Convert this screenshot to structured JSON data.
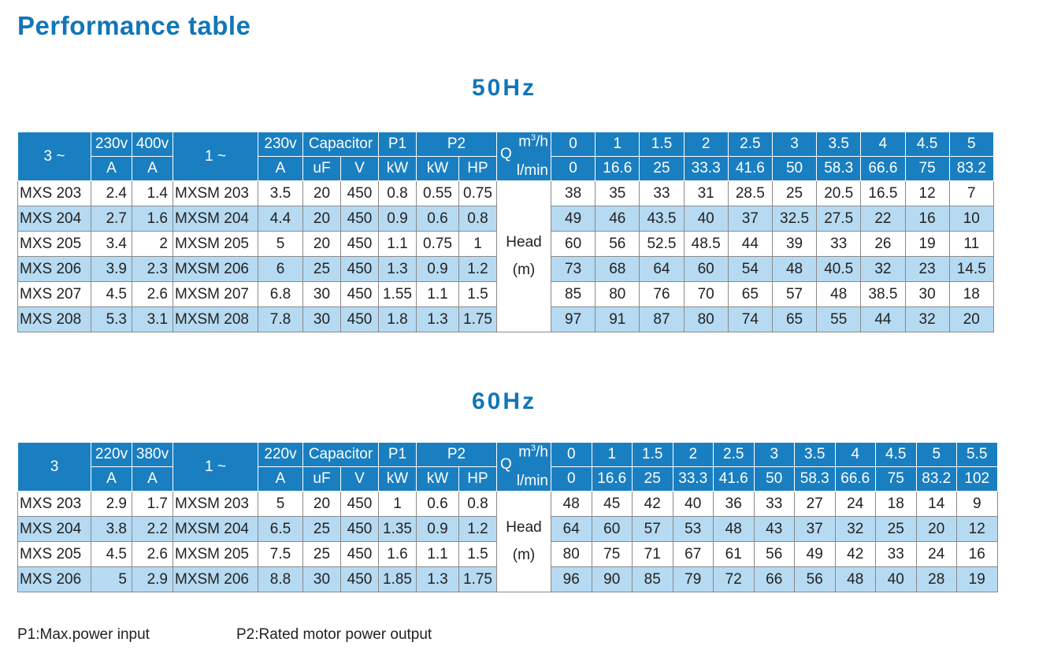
{
  "title": "Performance table",
  "footnotes": {
    "p1": "P1:Max.power input",
    "p2": "P2:Rated motor power output"
  },
  "table50": {
    "freq": "50Hz",
    "phase3": "3 ~",
    "phase1": "1 ~",
    "v1": "230v",
    "v2": "400v",
    "v3": "230v",
    "cap": "Capacitor",
    "p1": "P1",
    "p2": "P2",
    "unitA": "A",
    "unitUF": "uF",
    "unitV": "V",
    "unitKW": "kW",
    "unitHP": "HP",
    "q": "Q",
    "m3h": "m",
    "m3h_sup": "3",
    "m3h_tail": "/h",
    "lmin": "l/min",
    "head1": "Head",
    "head2": "(m)",
    "flow_m3h": [
      "0",
      "1",
      "1.5",
      "2",
      "2.5",
      "3",
      "3.5",
      "4",
      "4.5",
      "5"
    ],
    "flow_lmin": [
      "0",
      "16.6",
      "25",
      "33.3",
      "41.6",
      "50",
      "58.3",
      "66.6",
      "75",
      "83.2"
    ],
    "rows": [
      {
        "m3": "MXS 203",
        "a230": "2.4",
        "a400": "1.4",
        "m1": "MXSM 203",
        "a1": "3.5",
        "uf": "20",
        "v": "450",
        "p1": "0.8",
        "kw": "0.55",
        "hp": "0.75",
        "head": [
          "38",
          "35",
          "33",
          "31",
          "28.5",
          "25",
          "20.5",
          "16.5",
          "12",
          "7"
        ]
      },
      {
        "m3": "MXS 204",
        "a230": "2.7",
        "a400": "1.6",
        "m1": "MXSM 204",
        "a1": "4.4",
        "uf": "20",
        "v": "450",
        "p1": "0.9",
        "kw": "0.6",
        "hp": "0.8",
        "head": [
          "49",
          "46",
          "43.5",
          "40",
          "37",
          "32.5",
          "27.5",
          "22",
          "16",
          "10"
        ]
      },
      {
        "m3": "MXS 205",
        "a230": "3.4",
        "a400": "2",
        "m1": "MXSM 205",
        "a1": "5",
        "uf": "20",
        "v": "450",
        "p1": "1.1",
        "kw": "0.75",
        "hp": "1",
        "head": [
          "60",
          "56",
          "52.5",
          "48.5",
          "44",
          "39",
          "33",
          "26",
          "19",
          "11"
        ]
      },
      {
        "m3": "MXS 206",
        "a230": "3.9",
        "a400": "2.3",
        "m1": "MXSM 206",
        "a1": "6",
        "uf": "25",
        "v": "450",
        "p1": "1.3",
        "kw": "0.9",
        "hp": "1.2",
        "head": [
          "73",
          "68",
          "64",
          "60",
          "54",
          "48",
          "40.5",
          "32",
          "23",
          "14.5"
        ]
      },
      {
        "m3": "MXS 207",
        "a230": "4.5",
        "a400": "2.6",
        "m1": "MXSM 207",
        "a1": "6.8",
        "uf": "30",
        "v": "450",
        "p1": "1.55",
        "kw": "1.1",
        "hp": "1.5",
        "head": [
          "85",
          "80",
          "76",
          "70",
          "65",
          "57",
          "48",
          "38.5",
          "30",
          "18"
        ]
      },
      {
        "m3": "MXS 208",
        "a230": "5.3",
        "a400": "3.1",
        "m1": "MXSM 208",
        "a1": "7.8",
        "uf": "30",
        "v": "450",
        "p1": "1.8",
        "kw": "1.3",
        "hp": "1.75",
        "head": [
          "97",
          "91",
          "87",
          "80",
          "74",
          "65",
          "55",
          "44",
          "32",
          "20"
        ]
      }
    ]
  },
  "table60": {
    "freq": "60Hz",
    "phase3": "3",
    "phase1": "1 ~",
    "v1": "220v",
    "v2": "380v",
    "v3": "220v",
    "cap": "Capacitor",
    "p1": "P1",
    "p2": "P2",
    "unitA": "A",
    "unitUF": "uF",
    "unitV": "V",
    "unitKW": "kW",
    "unitHP": "HP",
    "q": "Q",
    "m3h": "m",
    "m3h_sup": "3",
    "m3h_tail": "/h",
    "lmin": "l/min",
    "head1": "Head",
    "head2": "(m)",
    "flow_m3h": [
      "0",
      "1",
      "1.5",
      "2",
      "2.5",
      "3",
      "3.5",
      "4",
      "4.5",
      "5",
      "5.5"
    ],
    "flow_lmin": [
      "0",
      "16.6",
      "25",
      "33.3",
      "41.6",
      "50",
      "58.3",
      "66.6",
      "75",
      "83.2",
      "102"
    ],
    "rows": [
      {
        "m3": "MXS 203",
        "a230": "2.9",
        "a400": "1.7",
        "m1": "MXSM 203",
        "a1": "5",
        "uf": "20",
        "v": "450",
        "p1": "1",
        "kw": "0.6",
        "hp": "0.8",
        "head": [
          "48",
          "45",
          "42",
          "40",
          "36",
          "33",
          "27",
          "24",
          "18",
          "14",
          "9"
        ]
      },
      {
        "m3": "MXS 204",
        "a230": "3.8",
        "a400": "2.2",
        "m1": "MXSM 204",
        "a1": "6.5",
        "uf": "25",
        "v": "450",
        "p1": "1.35",
        "kw": "0.9",
        "hp": "1.2",
        "head": [
          "64",
          "60",
          "57",
          "53",
          "48",
          "43",
          "37",
          "32",
          "25",
          "20",
          "12"
        ]
      },
      {
        "m3": "MXS 205",
        "a230": "4.5",
        "a400": "2.6",
        "m1": "MXSM 205",
        "a1": "7.5",
        "uf": "25",
        "v": "450",
        "p1": "1.6",
        "kw": "1.1",
        "hp": "1.5",
        "head": [
          "80",
          "75",
          "71",
          "67",
          "61",
          "56",
          "49",
          "42",
          "33",
          "24",
          "16"
        ]
      },
      {
        "m3": "MXS 206",
        "a230": "5",
        "a400": "2.9",
        "m1": "MXSM 206",
        "a1": "8.8",
        "uf": "30",
        "v": "450",
        "p1": "1.85",
        "kw": "1.3",
        "hp": "1.75",
        "head": [
          "96",
          "90",
          "85",
          "79",
          "72",
          "66",
          "56",
          "48",
          "40",
          "28",
          "19"
        ]
      }
    ]
  }
}
